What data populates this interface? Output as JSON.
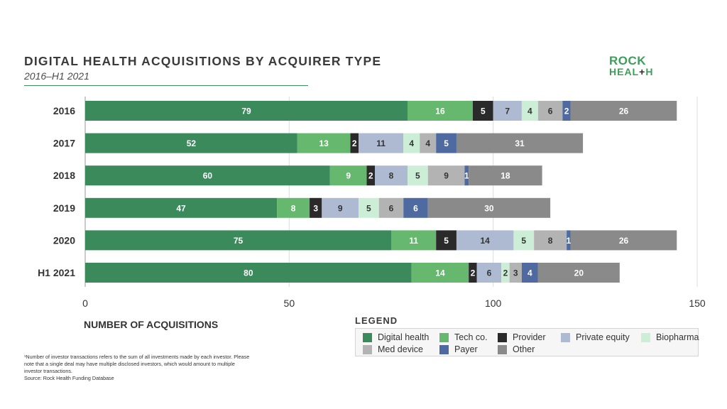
{
  "header": {
    "title": "DIGITAL HEALTH ACQUISITIONS BY ACQUIRER TYPE",
    "subtitle": "2016–H1 2021"
  },
  "logo": {
    "line1": "ROCK",
    "line2_a": "HEAL",
    "line2_b": "+",
    "line2_c": "H"
  },
  "legend": {
    "title": "LEGEND"
  },
  "footnote": {
    "text": "¹Number of investor transactions refers to the sum of all investments made by each investor. Please note that a single deal may have multiple disclosed investors, which would amount to multiple investor transactions.",
    "source": "Source: Rock Health Funding Database"
  },
  "chart_data": {
    "type": "bar",
    "orientation": "horizontal",
    "stacked": true,
    "categories": [
      "2016",
      "2017",
      "2018",
      "2019",
      "2020",
      "H1 2021"
    ],
    "xlabel": "NUMBER OF ACQUISITIONS",
    "xlim": [
      0,
      150
    ],
    "xticks": [
      0,
      50,
      100,
      150
    ],
    "grid": "vertical",
    "legend_position": "bottom-right",
    "series": [
      {
        "name": "Digital health",
        "color": "#3a8a5c",
        "values": [
          79,
          52,
          60,
          47,
          75,
          80
        ]
      },
      {
        "name": "Tech co.",
        "color": "#66b86e",
        "values": [
          16,
          13,
          9,
          8,
          11,
          14
        ]
      },
      {
        "name": "Provider",
        "color": "#2a2a2a",
        "values": [
          5,
          2,
          2,
          3,
          5,
          2
        ]
      },
      {
        "name": "Private equity",
        "color": "#aeb9d2",
        "values": [
          7,
          11,
          8,
          9,
          14,
          6
        ]
      },
      {
        "name": "Biopharma",
        "color": "#cdeed6",
        "values": [
          4,
          4,
          5,
          5,
          5,
          2
        ]
      },
      {
        "name": "Med device",
        "color": "#b3b3b3",
        "values": [
          6,
          4,
          9,
          6,
          8,
          3
        ]
      },
      {
        "name": "Payer",
        "color": "#4f6aa0",
        "values": [
          2,
          5,
          1,
          6,
          1,
          4
        ]
      },
      {
        "name": "Other",
        "color": "#8a8a8a",
        "values": [
          26,
          31,
          18,
          30,
          26,
          20
        ]
      }
    ]
  }
}
